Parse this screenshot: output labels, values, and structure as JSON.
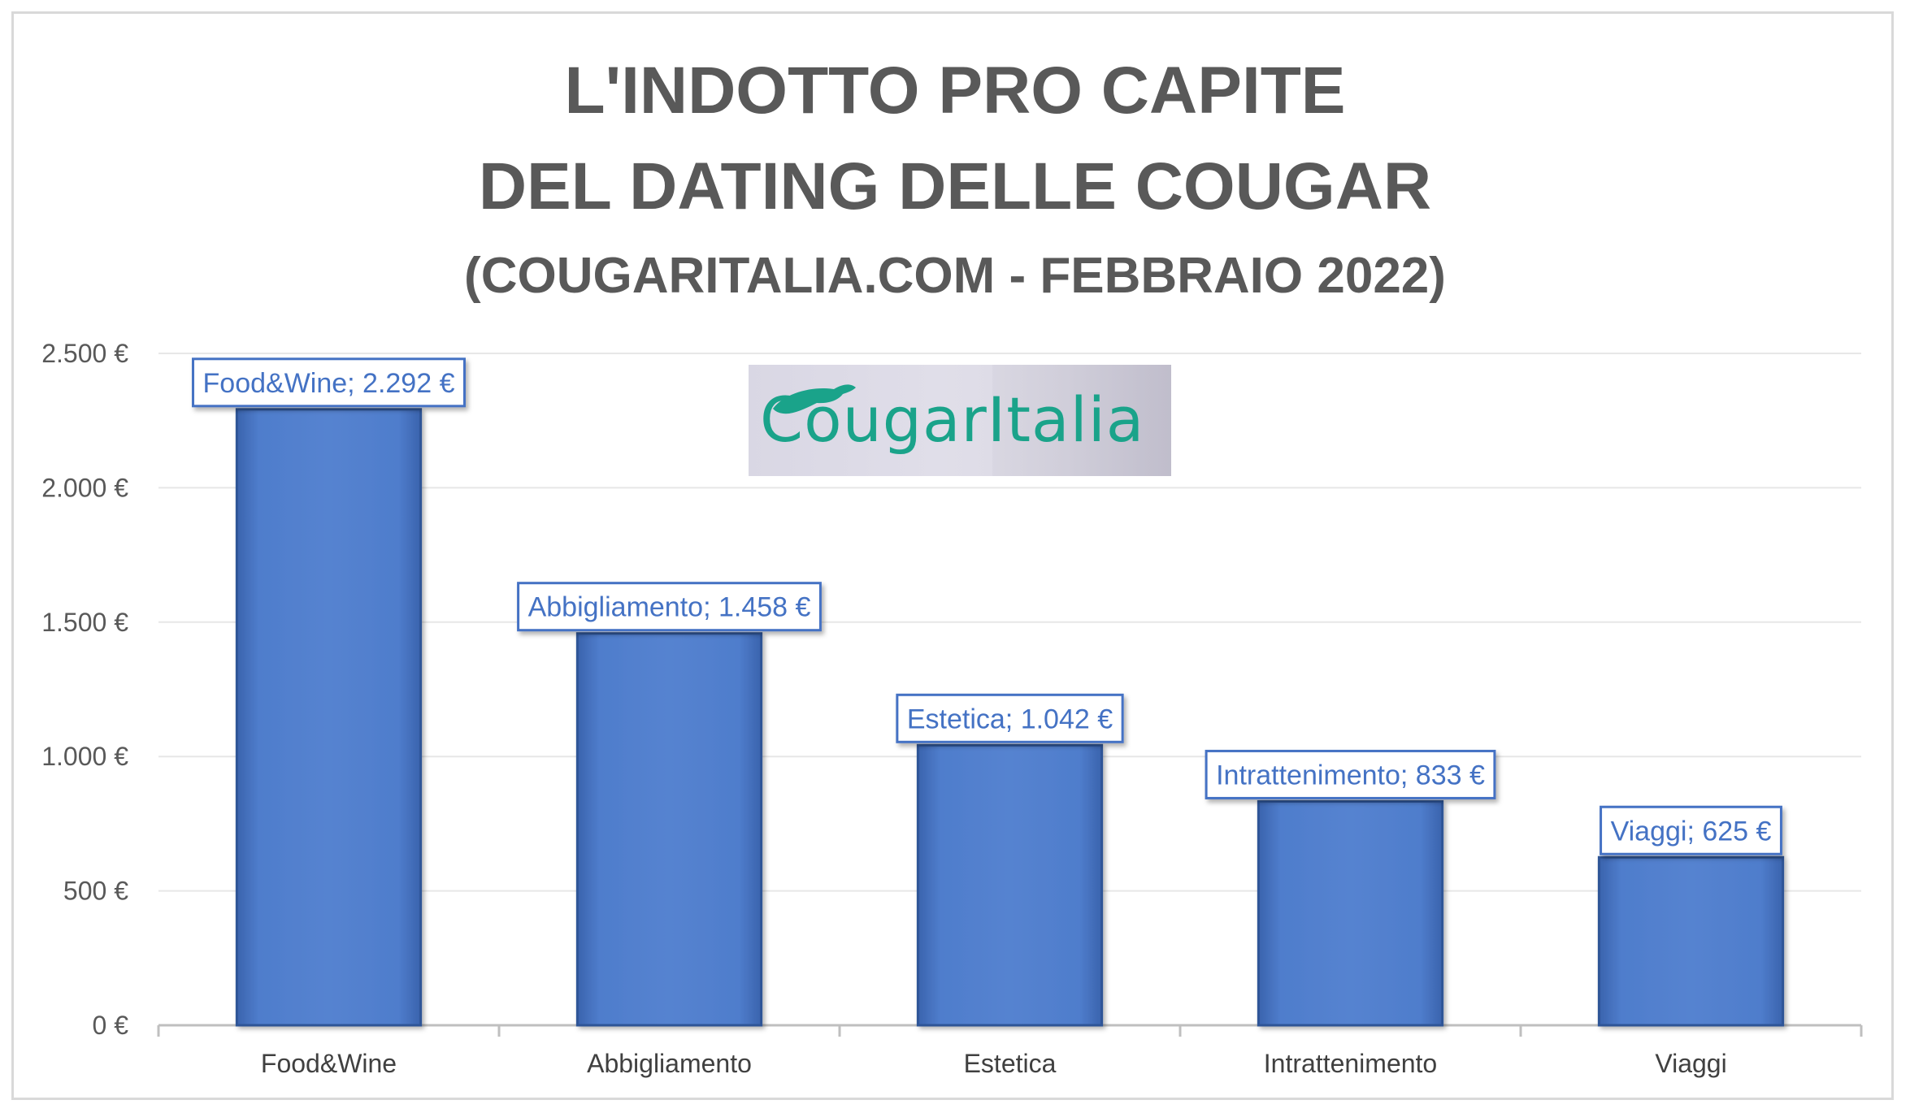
{
  "chart_data": {
    "type": "bar",
    "title_lines": [
      "L'INDOTTO PRO CAPITE",
      "DEL DATING DELLE COUGAR",
      "(COUGARITALIA.COM - FEBBRAIO 2022)"
    ],
    "categories": [
      "Food&Wine",
      "Abbigliamento",
      "Estetica",
      "Intrattenimento",
      "Viaggi"
    ],
    "values": [
      2292,
      1458,
      1042,
      833,
      625
    ],
    "data_labels": [
      "Food&Wine; 2.292 €",
      "Abbigliamento; 1.458 €",
      "Estetica; 1.042 €",
      "Intrattenimento; 833 €",
      "Viaggi; 625 €"
    ],
    "yticks": [
      0,
      500,
      1000,
      1500,
      2000,
      2500
    ],
    "ytick_labels": [
      "0 €",
      "500 €",
      "1.000 €",
      "1.500 €",
      "2.000 €",
      "2.500 €"
    ],
    "ylim": [
      0,
      2500
    ],
    "grid": true,
    "legend": "none",
    "xlabel": "",
    "ylabel": "",
    "bar_color": "#4472c4",
    "bar_edge_color": "#2f5597",
    "label_border_color": "#4472c4",
    "gridline_color": "#e7e7e7",
    "axis_color": "#bfbfbf",
    "title_color": "#595959"
  },
  "logo": {
    "text": "CougarItalia",
    "text_color": "#1aa38a",
    "icon": "cougar-icon"
  }
}
